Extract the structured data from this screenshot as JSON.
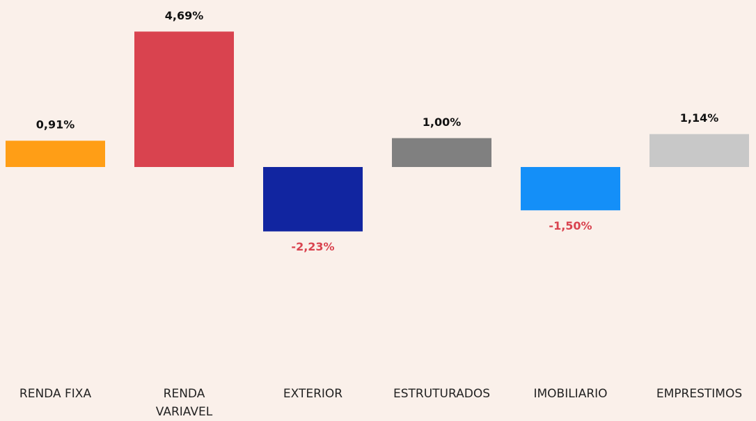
{
  "chart_data": {
    "type": "bar",
    "categories": [
      "RENDA FIXA",
      "RENDA VARIAVEL",
      "EXTERIOR",
      "ESTRUTURADOS",
      "IMOBILIARIO",
      "EMPRESTIMOS"
    ],
    "values": [
      0.91,
      4.69,
      -2.23,
      1.0,
      -1.5,
      1.14
    ],
    "value_labels": [
      "0,91%",
      "4,69%",
      "-2,23%",
      "1,00%",
      "-1,50%",
      "1,14%"
    ],
    "colors": [
      "#ff9e16",
      "#d9434f",
      "#1125a0",
      "#808080",
      "#148ff8",
      "#c8c8c8"
    ]
  }
}
